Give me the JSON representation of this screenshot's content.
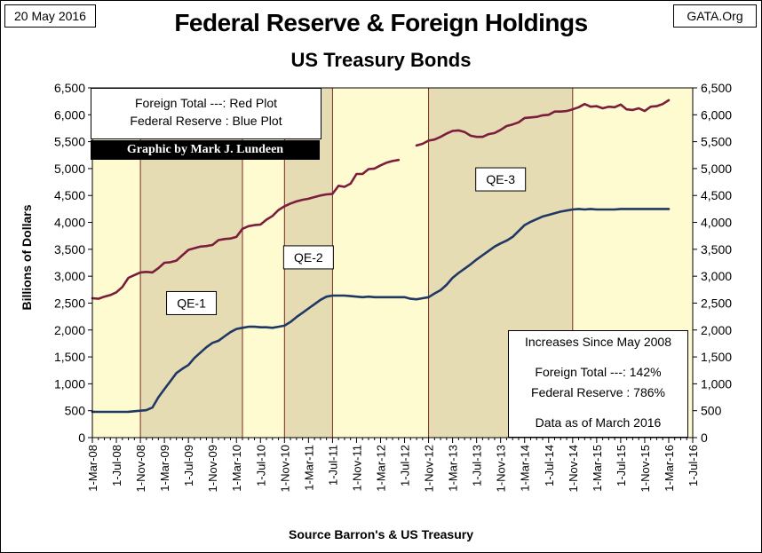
{
  "header": {
    "date": "20 May 2016",
    "site": "GATA.Org"
  },
  "legend": {
    "line1": "Foreign Total ---: Red Plot",
    "line2": "Federal Reserve : Blue Plot",
    "credit": "Graphic by Mark J. Lundeen"
  },
  "stats": {
    "title": "Increases Since May 2008",
    "foreign": "Foreign Total ---:  142%",
    "fed": "Federal Reserve :  786%",
    "asof": "Data as of March 2016"
  },
  "chart_data": {
    "type": "line",
    "title": "Federal Reserve & Foreign Holdings",
    "subtitle": "US Treasury Bonds",
    "xlabel": "Source Barron's & US Treasury",
    "ylabel": "Billions  of  Dollars",
    "ylim": [
      0,
      6500
    ],
    "yticks": [
      0,
      500,
      1000,
      1500,
      2000,
      2500,
      3000,
      3500,
      4000,
      4500,
      5000,
      5500,
      6000,
      6500
    ],
    "y_tick_labels": [
      "0",
      "500",
      "1,000",
      "1,500",
      "2,000",
      "2,500",
      "3,000",
      "3,500",
      "4,000",
      "4,500",
      "5,000",
      "5,500",
      "6,000",
      "6,500"
    ],
    "x_range": [
      "2008-03-01",
      "2016-07-01"
    ],
    "x_tick_labels": [
      "1-Mar-08",
      "1-Jul-08",
      "1-Nov-08",
      "1-Mar-09",
      "1-Jul-09",
      "1-Nov-09",
      "1-Mar-10",
      "1-Jul-10",
      "1-Nov-10",
      "1-Mar-11",
      "1-Jul-11",
      "1-Nov-11",
      "1-Mar-12",
      "1-Jul-12",
      "1-Nov-12",
      "1-Mar-13",
      "1-Jul-13",
      "1-Nov-13",
      "1-Mar-14",
      "1-Jul-14",
      "1-Nov-14",
      "1-Mar-15",
      "1-Jul-15",
      "1-Nov-15",
      "1-Mar-16",
      "1-Jul-16"
    ],
    "grid": false,
    "background_color": "#fffbd0",
    "qe_shade_color": "#e6dcb4",
    "qe_border_color": "#7a2a20",
    "qe_periods": [
      {
        "label": "QE-1",
        "start": "2008-11-01",
        "end": "2010-04-01",
        "label_y": 2500
      },
      {
        "label": "QE-2",
        "start": "2010-11-01",
        "end": "2011-07-01",
        "label_y": 3350
      },
      {
        "label": "QE-3",
        "start": "2012-11-01",
        "end": "2014-11-01",
        "label_y": 4800
      }
    ],
    "series": [
      {
        "name": "Foreign Total",
        "color": "#7b1e3c",
        "segments": [
          [
            [
              "2008-03-01",
              2590
            ],
            [
              "2008-04-01",
              2580
            ],
            [
              "2008-05-01",
              2620
            ],
            [
              "2008-06-01",
              2650
            ],
            [
              "2008-07-01",
              2700
            ],
            [
              "2008-08-01",
              2800
            ],
            [
              "2008-09-01",
              2970
            ],
            [
              "2008-10-01",
              3020
            ],
            [
              "2008-11-01",
              3070
            ],
            [
              "2008-12-01",
              3080
            ],
            [
              "2009-01-01",
              3070
            ],
            [
              "2009-02-01",
              3150
            ],
            [
              "2009-03-01",
              3250
            ],
            [
              "2009-04-01",
              3260
            ],
            [
              "2009-05-01",
              3290
            ],
            [
              "2009-06-01",
              3390
            ],
            [
              "2009-07-01",
              3490
            ],
            [
              "2009-08-01",
              3520
            ],
            [
              "2009-09-01",
              3550
            ],
            [
              "2009-10-01",
              3560
            ],
            [
              "2009-11-01",
              3580
            ],
            [
              "2009-12-01",
              3670
            ],
            [
              "2010-01-01",
              3690
            ],
            [
              "2010-02-01",
              3700
            ],
            [
              "2010-03-01",
              3730
            ],
            [
              "2010-04-01",
              3880
            ],
            [
              "2010-05-01",
              3930
            ],
            [
              "2010-06-01",
              3950
            ],
            [
              "2010-07-01",
              3960
            ],
            [
              "2010-08-01",
              4050
            ],
            [
              "2010-09-01",
              4120
            ],
            [
              "2010-10-01",
              4230
            ],
            [
              "2010-11-01",
              4300
            ],
            [
              "2010-12-01",
              4350
            ],
            [
              "2011-01-01",
              4390
            ],
            [
              "2011-02-01",
              4420
            ],
            [
              "2011-03-01",
              4440
            ],
            [
              "2011-04-01",
              4470
            ],
            [
              "2011-05-01",
              4500
            ],
            [
              "2011-06-01",
              4520
            ],
            [
              "2011-07-01",
              4530
            ],
            [
              "2011-08-01",
              4680
            ],
            [
              "2011-09-01",
              4660
            ],
            [
              "2011-10-01",
              4720
            ],
            [
              "2011-11-01",
              4900
            ],
            [
              "2011-12-01",
              4900
            ],
            [
              "2012-01-01",
              4990
            ],
            [
              "2012-02-01",
              5000
            ],
            [
              "2012-03-01",
              5060
            ],
            [
              "2012-04-01",
              5110
            ],
            [
              "2012-05-01",
              5140
            ],
            [
              "2012-06-01",
              5160
            ]
          ],
          [
            [
              "2012-09-01",
              5430
            ],
            [
              "2012-10-01",
              5460
            ],
            [
              "2012-11-01",
              5520
            ],
            [
              "2012-12-01",
              5540
            ],
            [
              "2013-01-01",
              5590
            ],
            [
              "2013-02-01",
              5650
            ],
            [
              "2013-03-01",
              5700
            ],
            [
              "2013-04-01",
              5710
            ],
            [
              "2013-05-01",
              5680
            ],
            [
              "2013-06-01",
              5610
            ],
            [
              "2013-07-01",
              5590
            ],
            [
              "2013-08-01",
              5590
            ],
            [
              "2013-09-01",
              5640
            ],
            [
              "2013-10-01",
              5660
            ],
            [
              "2013-11-01",
              5720
            ],
            [
              "2013-12-01",
              5790
            ],
            [
              "2014-01-01",
              5820
            ],
            [
              "2014-02-01",
              5860
            ],
            [
              "2014-03-01",
              5940
            ],
            [
              "2014-04-01",
              5950
            ],
            [
              "2014-05-01",
              5960
            ],
            [
              "2014-06-01",
              5990
            ],
            [
              "2014-07-01",
              6000
            ],
            [
              "2014-08-01",
              6060
            ],
            [
              "2014-09-01",
              6060
            ],
            [
              "2014-10-01",
              6070
            ],
            [
              "2014-11-01",
              6100
            ],
            [
              "2014-12-01",
              6140
            ],
            [
              "2015-01-01",
              6200
            ],
            [
              "2015-02-01",
              6150
            ],
            [
              "2015-03-01",
              6160
            ],
            [
              "2015-04-01",
              6120
            ],
            [
              "2015-05-01",
              6150
            ],
            [
              "2015-06-01",
              6140
            ],
            [
              "2015-07-01",
              6190
            ],
            [
              "2015-08-01",
              6100
            ],
            [
              "2015-09-01",
              6090
            ],
            [
              "2015-10-01",
              6120
            ],
            [
              "2015-11-01",
              6070
            ],
            [
              "2015-12-01",
              6150
            ],
            [
              "2016-01-01",
              6160
            ],
            [
              "2016-02-01",
              6200
            ],
            [
              "2016-03-01",
              6270
            ]
          ]
        ]
      },
      {
        "name": "Federal Reserve",
        "color": "#1f3864",
        "segments": [
          [
            [
              "2008-03-01",
              480
            ],
            [
              "2008-04-01",
              478
            ],
            [
              "2008-05-01",
              478
            ],
            [
              "2008-06-01",
              478
            ],
            [
              "2008-07-01",
              478
            ],
            [
              "2008-08-01",
              478
            ],
            [
              "2008-09-01",
              480
            ],
            [
              "2008-10-01",
              490
            ],
            [
              "2008-11-01",
              500
            ],
            [
              "2008-12-01",
              510
            ],
            [
              "2009-01-01",
              560
            ],
            [
              "2009-02-01",
              750
            ],
            [
              "2009-03-01",
              900
            ],
            [
              "2009-04-01",
              1050
            ],
            [
              "2009-05-01",
              1200
            ],
            [
              "2009-06-01",
              1280
            ],
            [
              "2009-07-01",
              1350
            ],
            [
              "2009-08-01",
              1480
            ],
            [
              "2009-09-01",
              1580
            ],
            [
              "2009-10-01",
              1680
            ],
            [
              "2009-11-01",
              1760
            ],
            [
              "2009-12-01",
              1800
            ],
            [
              "2010-01-01",
              1880
            ],
            [
              "2010-02-01",
              1960
            ],
            [
              "2010-03-01",
              2020
            ],
            [
              "2010-04-01",
              2040
            ],
            [
              "2010-05-01",
              2060
            ],
            [
              "2010-06-01",
              2060
            ],
            [
              "2010-07-01",
              2050
            ],
            [
              "2010-08-01",
              2050
            ],
            [
              "2010-09-01",
              2040
            ],
            [
              "2010-10-01",
              2060
            ],
            [
              "2010-11-01",
              2080
            ],
            [
              "2010-12-01",
              2150
            ],
            [
              "2011-01-01",
              2240
            ],
            [
              "2011-02-01",
              2320
            ],
            [
              "2011-03-01",
              2400
            ],
            [
              "2011-04-01",
              2480
            ],
            [
              "2011-05-01",
              2560
            ],
            [
              "2011-06-01",
              2620
            ],
            [
              "2011-07-01",
              2640
            ],
            [
              "2011-08-01",
              2640
            ],
            [
              "2011-09-01",
              2640
            ],
            [
              "2011-10-01",
              2630
            ],
            [
              "2011-11-01",
              2620
            ],
            [
              "2011-12-01",
              2610
            ],
            [
              "2012-01-01",
              2620
            ],
            [
              "2012-02-01",
              2610
            ],
            [
              "2012-03-01",
              2610
            ],
            [
              "2012-04-01",
              2610
            ],
            [
              "2012-05-01",
              2610
            ],
            [
              "2012-06-01",
              2610
            ],
            [
              "2012-07-01",
              2610
            ],
            [
              "2012-08-01",
              2580
            ],
            [
              "2012-09-01",
              2570
            ],
            [
              "2012-10-01",
              2590
            ],
            [
              "2012-11-01",
              2610
            ],
            [
              "2012-12-01",
              2680
            ],
            [
              "2013-01-01",
              2740
            ],
            [
              "2013-02-01",
              2840
            ],
            [
              "2013-03-01",
              2970
            ],
            [
              "2013-04-01",
              3060
            ],
            [
              "2013-05-01",
              3140
            ],
            [
              "2013-06-01",
              3220
            ],
            [
              "2013-07-01",
              3310
            ],
            [
              "2013-08-01",
              3390
            ],
            [
              "2013-09-01",
              3470
            ],
            [
              "2013-10-01",
              3550
            ],
            [
              "2013-11-01",
              3610
            ],
            [
              "2013-12-01",
              3660
            ],
            [
              "2014-01-01",
              3730
            ],
            [
              "2014-02-01",
              3840
            ],
            [
              "2014-03-01",
              3950
            ],
            [
              "2014-04-01",
              4010
            ],
            [
              "2014-05-01",
              4060
            ],
            [
              "2014-06-01",
              4110
            ],
            [
              "2014-07-01",
              4140
            ],
            [
              "2014-08-01",
              4170
            ],
            [
              "2014-09-01",
              4200
            ],
            [
              "2014-10-01",
              4220
            ],
            [
              "2014-11-01",
              4240
            ],
            [
              "2014-12-01",
              4250
            ],
            [
              "2015-01-01",
              4240
            ],
            [
              "2015-02-01",
              4250
            ],
            [
              "2015-03-01",
              4240
            ],
            [
              "2015-04-01",
              4240
            ],
            [
              "2015-05-01",
              4240
            ],
            [
              "2015-06-01",
              4240
            ],
            [
              "2015-07-01",
              4250
            ],
            [
              "2015-08-01",
              4250
            ],
            [
              "2015-09-01",
              4250
            ],
            [
              "2015-10-01",
              4250
            ],
            [
              "2015-11-01",
              4250
            ],
            [
              "2015-12-01",
              4250
            ],
            [
              "2016-01-01",
              4250
            ],
            [
              "2016-02-01",
              4250
            ],
            [
              "2016-03-01",
              4250
            ]
          ]
        ]
      }
    ]
  }
}
